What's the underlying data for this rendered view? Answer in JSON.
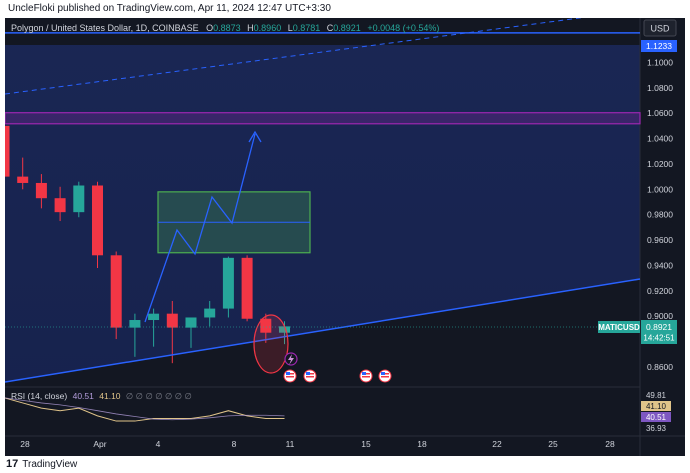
{
  "caption": "UncleFloki published on TradingView.com, Apr 11, 2024 12:47 UTC+3:30",
  "footer": {
    "logo_glyph": "17",
    "brand": "TradingView"
  },
  "header": {
    "symbol": "Polygon / United States Dollar, 1D, COINBASE",
    "o_label": "O",
    "o": "0.8873",
    "h_label": "H",
    "h": "0.8960",
    "l_label": "L",
    "l": "0.8781",
    "c_label": "C",
    "c": "0.8921",
    "change": "+0.0048 (+0.54%)",
    "currency": "USD"
  },
  "price_axis": {
    "ticks": [
      "1.1000",
      "1.0800",
      "1.0600",
      "1.0400",
      "1.0200",
      "1.0000",
      "0.9800",
      "0.9600",
      "0.9400",
      "0.9200",
      "0.9000",
      "0.8600"
    ],
    "badge_1233": "1.1233",
    "symbol_badge": "MATICUSD",
    "price_badge": "0.8921",
    "countdown": "14:42:51"
  },
  "time_axis": {
    "ticks": [
      "28",
      "Apr",
      "4",
      "8",
      "11",
      "15",
      "18",
      "22",
      "25",
      "28"
    ]
  },
  "rsi": {
    "label": "RSI (14, close)",
    "value1": "40.51",
    "value2": "41.10",
    "placeholders": "∅ ∅ ∅ ∅ ∅ ∅ ∅",
    "badges": [
      "49.81",
      "41.10",
      "40.51",
      "36.93"
    ]
  },
  "colors": {
    "up": "#26a69a",
    "down": "#f23645",
    "bg": "#131722",
    "blue": "#2962ff",
    "purple": "#9c27b0",
    "green": "#4caf50",
    "text": "#d1d4dc",
    "rsi_line": "#e0c48a"
  },
  "icons": [
    "lightning-icon",
    "us-flag-icon"
  ],
  "chart_data": {
    "type": "candlestick",
    "symbol": "Polygon / United States Dollar, 1D, COINBASE",
    "ylim": [
      0.845,
      1.135
    ],
    "candles": [
      {
        "o": 1.05,
        "h": 1.058,
        "l": 1.001,
        "c": 1.01
      },
      {
        "o": 1.01,
        "h": 1.025,
        "l": 1.0,
        "c": 1.005
      },
      {
        "o": 1.005,
        "h": 1.012,
        "l": 0.985,
        "c": 0.993
      },
      {
        "o": 0.993,
        "h": 1.002,
        "l": 0.975,
        "c": 0.982
      },
      {
        "o": 0.982,
        "h": 1.006,
        "l": 0.978,
        "c": 1.003
      },
      {
        "o": 1.003,
        "h": 1.006,
        "l": 0.938,
        "c": 0.948
      },
      {
        "o": 0.948,
        "h": 0.951,
        "l": 0.882,
        "c": 0.891
      },
      {
        "o": 0.891,
        "h": 0.902,
        "l": 0.868,
        "c": 0.897
      },
      {
        "o": 0.897,
        "h": 0.906,
        "l": 0.876,
        "c": 0.902
      },
      {
        "o": 0.902,
        "h": 0.912,
        "l": 0.863,
        "c": 0.891
      },
      {
        "o": 0.891,
        "h": 0.898,
        "l": 0.875,
        "c": 0.899
      },
      {
        "o": 0.899,
        "h": 0.912,
        "l": 0.892,
        "c": 0.906
      },
      {
        "o": 0.906,
        "h": 0.947,
        "l": 0.899,
        "c": 0.946
      },
      {
        "o": 0.946,
        "h": 0.948,
        "l": 0.896,
        "c": 0.898
      },
      {
        "o": 0.898,
        "h": 0.902,
        "l": 0.879,
        "c": 0.887
      },
      {
        "o": 0.887,
        "h": 0.896,
        "l": 0.878,
        "c": 0.892
      }
    ],
    "horizontal_lines": [
      1.1233
    ],
    "purple_zone": [
      1.054,
      1.058
    ],
    "green_box": [
      0.95,
      0.998
    ],
    "rsi": {
      "values": [
        49,
        47,
        45,
        44,
        45,
        42,
        40,
        40,
        41,
        41,
        41,
        42,
        44,
        42,
        41,
        41
      ],
      "ylim": [
        35,
        52
      ]
    }
  }
}
